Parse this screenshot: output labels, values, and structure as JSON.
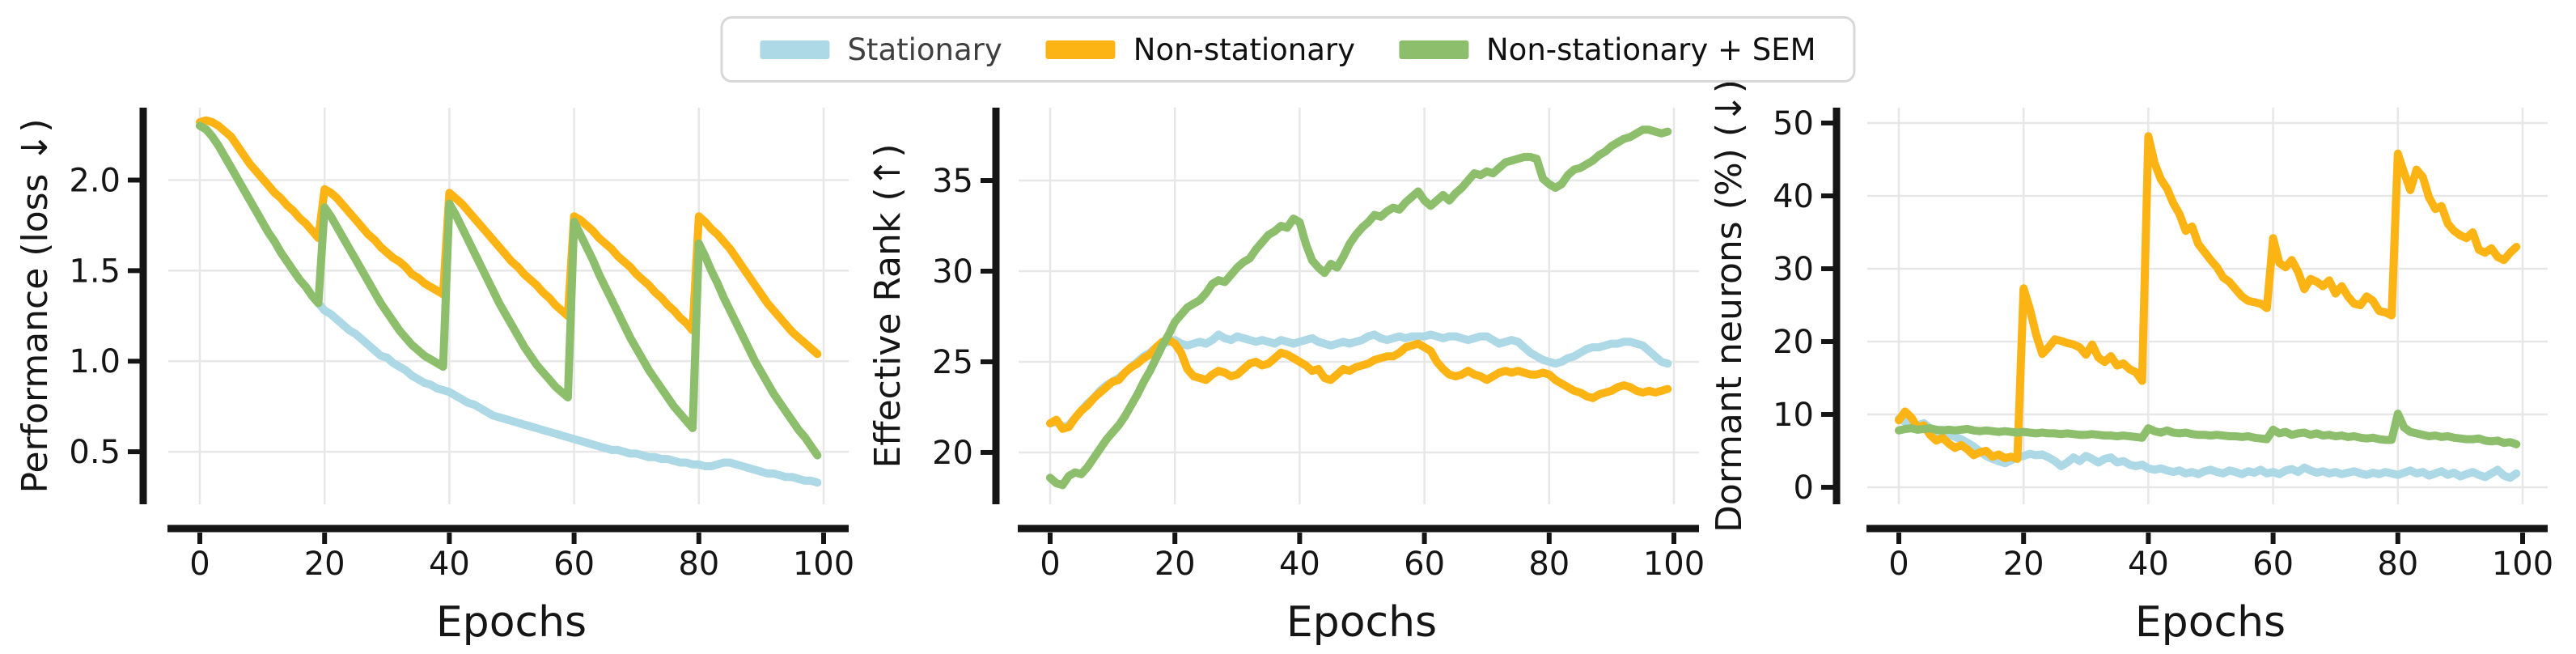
{
  "colors": {
    "stationary": "#ADD8E6",
    "non_stationary": "#FCB414",
    "non_stationary_sem": "#8CBE6C",
    "spine": "#151515",
    "grid": "#e7e7e7",
    "legend_border": "#d8d8d8"
  },
  "legend": {
    "items": [
      {
        "label": "Stationary",
        "key": "stationary",
        "label_color": "#3f3f3f"
      },
      {
        "label": "Non-stationary",
        "key": "non_stationary",
        "label_color": "#101010"
      },
      {
        "label": "Non-stationary + SEM",
        "key": "non_stationary_sem",
        "label_color": "#101010"
      }
    ]
  },
  "chart_data": [
    {
      "type": "line",
      "title": "",
      "ylabel": "Performance (loss ↓)",
      "xlabel": "Epochs",
      "x_range": [
        0,
        99
      ],
      "xticks": [
        0,
        20,
        40,
        60,
        80,
        100
      ],
      "xtick_labels": [
        "0",
        "20",
        "40",
        "60",
        "80",
        "100"
      ],
      "yticks": [
        0.5,
        1.0,
        1.5,
        2.0
      ],
      "ytick_labels": [
        "0.5",
        "1.0",
        "1.5",
        "2.0"
      ],
      "ylim": [
        0.21,
        2.4
      ],
      "grid": true,
      "series": [
        {
          "name": "Stationary",
          "key": "stationary",
          "values": [
            2.3,
            2.28,
            2.24,
            2.19,
            2.13,
            2.07,
            2.01,
            1.95,
            1.89,
            1.83,
            1.77,
            1.71,
            1.66,
            1.6,
            1.55,
            1.5,
            1.45,
            1.41,
            1.36,
            1.32,
            1.28,
            1.26,
            1.23,
            1.2,
            1.17,
            1.15,
            1.12,
            1.09,
            1.06,
            1.03,
            1.02,
            0.99,
            0.97,
            0.95,
            0.92,
            0.9,
            0.88,
            0.87,
            0.85,
            0.84,
            0.83,
            0.81,
            0.79,
            0.77,
            0.76,
            0.74,
            0.72,
            0.7,
            0.69,
            0.68,
            0.67,
            0.66,
            0.65,
            0.64,
            0.63,
            0.62,
            0.61,
            0.6,
            0.59,
            0.58,
            0.57,
            0.56,
            0.55,
            0.54,
            0.53,
            0.52,
            0.51,
            0.51,
            0.5,
            0.49,
            0.49,
            0.48,
            0.47,
            0.47,
            0.46,
            0.46,
            0.45,
            0.44,
            0.44,
            0.43,
            0.43,
            0.42,
            0.42,
            0.43,
            0.44,
            0.44,
            0.43,
            0.42,
            0.41,
            0.4,
            0.39,
            0.38,
            0.38,
            0.37,
            0.36,
            0.36,
            0.35,
            0.34,
            0.34,
            0.33
          ]
        },
        {
          "name": "Non-stationary",
          "key": "non_stationary",
          "values": [
            2.32,
            2.33,
            2.32,
            2.3,
            2.27,
            2.24,
            2.19,
            2.14,
            2.09,
            2.05,
            2.01,
            1.97,
            1.93,
            1.9,
            1.86,
            1.83,
            1.79,
            1.76,
            1.72,
            1.68,
            1.95,
            1.93,
            1.9,
            1.86,
            1.82,
            1.78,
            1.74,
            1.7,
            1.67,
            1.63,
            1.6,
            1.57,
            1.55,
            1.52,
            1.48,
            1.46,
            1.43,
            1.41,
            1.39,
            1.37,
            1.93,
            1.9,
            1.87,
            1.83,
            1.79,
            1.75,
            1.71,
            1.67,
            1.63,
            1.59,
            1.55,
            1.52,
            1.48,
            1.45,
            1.42,
            1.38,
            1.35,
            1.31,
            1.28,
            1.25,
            1.8,
            1.78,
            1.75,
            1.72,
            1.68,
            1.65,
            1.62,
            1.58,
            1.55,
            1.52,
            1.48,
            1.45,
            1.42,
            1.38,
            1.35,
            1.31,
            1.28,
            1.24,
            1.21,
            1.17,
            1.8,
            1.77,
            1.73,
            1.7,
            1.66,
            1.62,
            1.57,
            1.52,
            1.47,
            1.42,
            1.37,
            1.32,
            1.28,
            1.24,
            1.2,
            1.16,
            1.13,
            1.1,
            1.07,
            1.04
          ]
        },
        {
          "name": "Non-stationary + SEM",
          "key": "non_stationary_sem",
          "values": [
            2.3,
            2.28,
            2.24,
            2.19,
            2.13,
            2.07,
            2.01,
            1.95,
            1.89,
            1.83,
            1.77,
            1.71,
            1.66,
            1.6,
            1.55,
            1.5,
            1.45,
            1.41,
            1.36,
            1.32,
            1.85,
            1.8,
            1.74,
            1.68,
            1.62,
            1.56,
            1.5,
            1.44,
            1.38,
            1.32,
            1.27,
            1.22,
            1.17,
            1.13,
            1.09,
            1.06,
            1.03,
            1.01,
            0.99,
            0.97,
            1.87,
            1.81,
            1.74,
            1.67,
            1.6,
            1.53,
            1.46,
            1.39,
            1.32,
            1.26,
            1.2,
            1.14,
            1.08,
            1.03,
            0.98,
            0.94,
            0.9,
            0.86,
            0.83,
            0.8,
            1.77,
            1.7,
            1.63,
            1.56,
            1.48,
            1.41,
            1.34,
            1.27,
            1.2,
            1.13,
            1.07,
            1.01,
            0.95,
            0.9,
            0.85,
            0.8,
            0.75,
            0.71,
            0.67,
            0.63,
            1.65,
            1.58,
            1.5,
            1.43,
            1.35,
            1.28,
            1.21,
            1.14,
            1.07,
            1.0,
            0.94,
            0.88,
            0.82,
            0.77,
            0.72,
            0.67,
            0.62,
            0.58,
            0.53,
            0.48
          ]
        }
      ]
    },
    {
      "type": "line",
      "title": "",
      "ylabel": "Effective Rank (↑)",
      "xlabel": "Epochs",
      "x_range": [
        0,
        99
      ],
      "xticks": [
        0,
        20,
        40,
        60,
        80,
        100
      ],
      "xtick_labels": [
        "0",
        "20",
        "40",
        "60",
        "80",
        "100"
      ],
      "yticks": [
        20,
        25,
        30,
        35
      ],
      "ytick_labels": [
        "20",
        "25",
        "30",
        "35"
      ],
      "ylim": [
        17.14,
        39.02
      ],
      "grid": true,
      "series": [
        {
          "name": "Stationary",
          "key": "stationary",
          "values": [
            21.6,
            21.7,
            21.4,
            21.5,
            21.9,
            22.3,
            22.7,
            23.0,
            23.4,
            23.7,
            23.9,
            24.1,
            24.4,
            24.7,
            25.0,
            25.3,
            25.5,
            25.8,
            26.0,
            26.1,
            26.2,
            26.0,
            25.9,
            26.0,
            26.1,
            26.0,
            26.2,
            26.5,
            26.3,
            26.2,
            26.4,
            26.3,
            26.2,
            26.1,
            26.2,
            26.1,
            26.0,
            26.2,
            26.1,
            26.0,
            26.1,
            26.2,
            26.3,
            26.1,
            26.0,
            25.9,
            26.0,
            26.1,
            26.0,
            26.1,
            26.2,
            26.4,
            26.5,
            26.3,
            26.2,
            26.3,
            26.4,
            26.3,
            26.4,
            26.4,
            26.4,
            26.5,
            26.4,
            26.3,
            26.4,
            26.4,
            26.3,
            26.2,
            26.3,
            26.4,
            26.4,
            26.2,
            26.0,
            26.1,
            26.2,
            26.1,
            25.8,
            25.5,
            25.3,
            25.1,
            25.0,
            24.9,
            25.0,
            25.2,
            25.3,
            25.5,
            25.7,
            25.8,
            25.8,
            25.9,
            26.0,
            26.0,
            26.1,
            26.1,
            26.0,
            25.9,
            25.6,
            25.3,
            25.0,
            24.9
          ]
        },
        {
          "name": "Non-stationary",
          "key": "non_stationary",
          "values": [
            21.6,
            21.8,
            21.3,
            21.4,
            21.9,
            22.3,
            22.6,
            23.0,
            23.3,
            23.6,
            23.9,
            24.0,
            24.4,
            24.7,
            24.9,
            25.2,
            25.4,
            25.8,
            26.1,
            26.2,
            26.0,
            25.5,
            24.6,
            24.2,
            24.1,
            24.0,
            24.3,
            24.5,
            24.4,
            24.2,
            24.3,
            24.6,
            24.9,
            25.0,
            24.8,
            24.9,
            25.2,
            25.5,
            25.4,
            25.2,
            25.0,
            24.8,
            24.5,
            24.6,
            24.1,
            24.0,
            24.3,
            24.6,
            24.5,
            24.7,
            24.8,
            24.9,
            25.1,
            25.2,
            25.3,
            25.3,
            25.5,
            25.8,
            25.9,
            26.0,
            25.8,
            25.6,
            25.0,
            24.6,
            24.3,
            24.2,
            24.3,
            24.5,
            24.3,
            24.2,
            24.0,
            24.2,
            24.4,
            24.5,
            24.4,
            24.5,
            24.4,
            24.3,
            24.3,
            24.4,
            24.3,
            24.0,
            23.8,
            23.6,
            23.4,
            23.3,
            23.1,
            23.0,
            23.2,
            23.3,
            23.4,
            23.6,
            23.7,
            23.6,
            23.4,
            23.3,
            23.4,
            23.3,
            23.4,
            23.5
          ]
        },
        {
          "name": "Non-stationary + SEM",
          "key": "non_stationary_sem",
          "values": [
            18.6,
            18.3,
            18.2,
            18.7,
            18.9,
            18.8,
            19.2,
            19.7,
            20.2,
            20.7,
            21.1,
            21.5,
            22.0,
            22.6,
            23.2,
            23.9,
            24.5,
            25.2,
            25.9,
            26.5,
            27.2,
            27.6,
            28.0,
            28.2,
            28.4,
            28.8,
            29.3,
            29.5,
            29.4,
            29.8,
            30.2,
            30.5,
            30.7,
            31.2,
            31.6,
            32.0,
            32.2,
            32.5,
            32.4,
            32.9,
            32.7,
            31.5,
            30.6,
            30.2,
            29.9,
            30.4,
            30.2,
            30.8,
            31.5,
            32.0,
            32.4,
            32.7,
            33.1,
            33.0,
            33.3,
            33.5,
            33.4,
            33.8,
            34.1,
            34.4,
            33.9,
            33.6,
            33.9,
            34.2,
            33.9,
            34.3,
            34.6,
            35.0,
            35.4,
            35.3,
            35.5,
            35.4,
            35.7,
            36.0,
            36.1,
            36.2,
            36.3,
            36.3,
            36.2,
            35.1,
            34.8,
            34.6,
            34.8,
            35.3,
            35.6,
            35.7,
            35.9,
            36.1,
            36.4,
            36.6,
            36.9,
            37.1,
            37.3,
            37.4,
            37.6,
            37.8,
            37.8,
            37.7,
            37.6,
            37.7
          ]
        }
      ]
    },
    {
      "type": "line",
      "title": "",
      "ylabel": "Dormant neurons (%) (↓)",
      "xlabel": "Epochs",
      "x_range": [
        0,
        99
      ],
      "xticks": [
        0,
        20,
        40,
        60,
        80,
        100
      ],
      "xtick_labels": [
        "0",
        "20",
        "40",
        "60",
        "80",
        "100"
      ],
      "yticks": [
        0,
        10,
        20,
        30,
        40,
        50
      ],
      "ytick_labels": [
        "0",
        "10",
        "20",
        "30",
        "40",
        "50"
      ],
      "ylim": [
        -2.33,
        52.11
      ],
      "grid": true,
      "series": [
        {
          "name": "Stationary",
          "key": "stationary",
          "values": [
            9.4,
            9.0,
            8.7,
            8.5,
            8.8,
            8.1,
            7.6,
            7.9,
            7.3,
            6.9,
            6.6,
            6.1,
            5.6,
            4.9,
            4.3,
            3.9,
            3.6,
            3.3,
            3.7,
            4.1,
            4.3,
            4.6,
            4.4,
            4.5,
            4.1,
            3.6,
            2.9,
            3.4,
            4.1,
            3.6,
            4.3,
            3.9,
            3.4,
            3.9,
            4.1,
            3.4,
            3.6,
            3.1,
            2.9,
            3.1,
            2.6,
            2.4,
            2.6,
            2.3,
            2.1,
            2.3,
            1.9,
            2.1,
            1.8,
            2.2,
            2.4,
            2.1,
            1.9,
            2.3,
            2.1,
            1.8,
            2.2,
            2.0,
            2.4,
            1.9,
            2.1,
            1.8,
            2.3,
            2.5,
            2.1,
            2.7,
            2.3,
            2.0,
            2.2,
            1.9,
            2.1,
            1.8,
            2.0,
            2.2,
            1.9,
            1.7,
            2.0,
            1.8,
            2.1,
            1.9,
            1.7,
            2.0,
            2.3,
            1.9,
            2.1,
            1.6,
            1.9,
            2.2,
            1.7,
            2.0,
            1.5,
            1.8,
            2.1,
            1.7,
            1.4,
            1.9,
            2.4,
            1.6,
            1.3,
            1.9
          ]
        },
        {
          "name": "Non-stationary",
          "key": "non_stationary",
          "values": [
            9.2,
            10.4,
            9.6,
            8.2,
            8.5,
            7.2,
            6.4,
            6.8,
            6.0,
            5.4,
            5.8,
            5.2,
            4.4,
            4.8,
            5.0,
            4.2,
            4.5,
            4.0,
            4.2,
            3.9,
            27.3,
            24.5,
            21.0,
            18.3,
            19.2,
            20.3,
            20.1,
            19.8,
            19.6,
            19.2,
            18.2,
            19.6,
            17.8,
            17.2,
            18.0,
            16.7,
            17.0,
            16.2,
            15.8,
            14.6,
            48.2,
            44.5,
            42.3,
            41.0,
            39.0,
            37.5,
            35.2,
            35.8,
            33.4,
            32.3,
            31.2,
            30.2,
            28.8,
            28.2,
            27.2,
            26.2,
            25.6,
            25.4,
            25.2,
            24.6,
            34.2,
            30.8,
            30.2,
            31.2,
            29.6,
            27.2,
            28.6,
            28.2,
            27.6,
            28.4,
            26.6,
            27.6,
            26.2,
            25.2,
            25.0,
            26.2,
            25.6,
            24.2,
            24.0,
            23.6,
            45.8,
            43.2,
            40.8,
            43.6,
            42.6,
            39.8,
            38.2,
            38.6,
            36.2,
            35.2,
            34.6,
            34.2,
            35.0,
            32.6,
            32.2,
            32.8,
            31.6,
            31.2,
            32.2,
            33.0
          ]
        },
        {
          "name": "Non-stationary + SEM",
          "key": "non_stationary_sem",
          "values": [
            7.8,
            8.0,
            8.1,
            7.9,
            8.0,
            8.1,
            7.9,
            7.8,
            7.9,
            7.8,
            7.9,
            8.0,
            7.8,
            7.7,
            7.8,
            7.7,
            7.6,
            7.7,
            7.6,
            7.5,
            7.6,
            7.5,
            7.4,
            7.5,
            7.4,
            7.4,
            7.3,
            7.4,
            7.3,
            7.2,
            7.2,
            7.3,
            7.2,
            7.1,
            7.1,
            7.0,
            7.1,
            7.0,
            6.9,
            6.8,
            8.1,
            7.7,
            7.5,
            7.8,
            7.5,
            7.4,
            7.5,
            7.3,
            7.2,
            7.2,
            7.1,
            7.2,
            7.1,
            7.0,
            7.0,
            6.9,
            7.0,
            6.8,
            6.7,
            6.6,
            7.9,
            7.4,
            7.6,
            7.2,
            7.4,
            7.5,
            7.2,
            7.4,
            7.1,
            7.2,
            7.0,
            7.1,
            6.9,
            7.0,
            6.8,
            6.7,
            6.8,
            6.6,
            6.5,
            6.5,
            10.1,
            8.2,
            7.6,
            7.4,
            7.2,
            7.0,
            7.1,
            6.9,
            7.0,
            6.8,
            6.7,
            6.6,
            6.6,
            6.7,
            6.4,
            6.3,
            6.4,
            6.1,
            6.2,
            5.9
          ]
        }
      ]
    }
  ]
}
